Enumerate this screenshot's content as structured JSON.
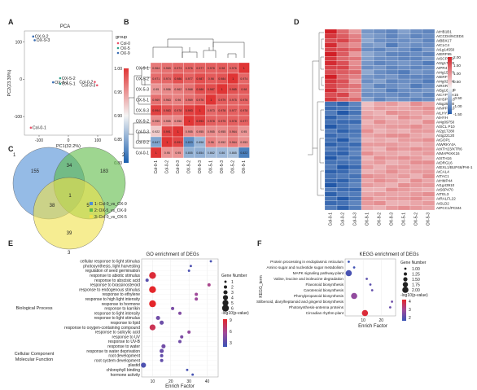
{
  "panels": {
    "A": "A",
    "B": "B",
    "C": "C",
    "D": "D",
    "E": "E",
    "F": "F"
  },
  "chart_data": [
    {
      "panel": "A",
      "type": "scatter",
      "title": "PCA",
      "xlabel": "PC1(32.2%)",
      "ylabel": "PC2(23.39%)",
      "xlim": [
        -150,
        150
      ],
      "ylim": [
        -150,
        130
      ],
      "xticks": [
        -100,
        0,
        100
      ],
      "yticks": [
        -100,
        0,
        100
      ],
      "legend_title": "group",
      "legend": [
        {
          "name": "Col-0",
          "color": "#e8546a"
        },
        {
          "name": "OX-5",
          "color": "#2fa08a"
        },
        {
          "name": "OX-9",
          "color": "#3a6db3"
        }
      ],
      "points": [
        {
          "label": "OX-9-2",
          "x": -120,
          "y": 115,
          "group": "OX-9"
        },
        {
          "label": "OX-9-3",
          "x": -115,
          "y": 105,
          "group": "OX-9"
        },
        {
          "label": "OX-5-2",
          "x": -28,
          "y": 3,
          "group": "OX-5"
        },
        {
          "label": "OX-9-1",
          "x": -52,
          "y": -8,
          "group": "OX-9"
        },
        {
          "label": "OX-5-1",
          "x": -28,
          "y": -12,
          "group": "OX-5"
        },
        {
          "label": "Col-0-2",
          "x": 90,
          "y": -7,
          "group": "Col-0"
        },
        {
          "label": "Col-0-3",
          "x": 98,
          "y": -16,
          "group": "Col-0"
        },
        {
          "label": "Col-0-1",
          "x": -128,
          "y": -130,
          "group": "Col-0"
        }
      ]
    },
    {
      "panel": "B",
      "type": "heatmap",
      "samples": [
        "OX-9-1",
        "OX-5-2",
        "OX-5-3",
        "OX-5-1",
        "OX-9-3",
        "OX-9-2",
        "Col-0-3",
        "Col-0-2",
        "Col-0-1"
      ],
      "columns": [
        "Col-0-1",
        "Col-0-2",
        "Col-0-3",
        "OX-9-2",
        "OX-9-3",
        "OX-5-1",
        "OX-5-3",
        "OX-5-2",
        "OX-9-1"
      ],
      "colorbar": {
        "ticks": [
          "1.00",
          "0.95",
          "0.90",
          "0.85",
          "0.80"
        ],
        "range": [
          0.8,
          1.0
        ]
      },
      "matrix": [
        [
          0.964,
          0.969,
          0.973,
          0.976,
          0.977,
          0.978,
          0.98,
          0.976,
          1
        ],
        [
          0.971,
          0.974,
          0.986,
          0.977,
          0.987,
          0.98,
          0.984,
          1,
          0.974
        ],
        [
          0.95,
          0.956,
          0.962,
          0.968,
          0.986,
          0.987,
          1,
          0.985,
          0.98
        ],
        [
          0.969,
          0.963,
          0.96,
          0.969,
          0.976,
          1,
          0.979,
          0.975,
          0.976
        ],
        [
          0.994,
          0.983,
          0.978,
          0.993,
          1,
          0.973,
          0.978,
          0.977,
          0.978
        ],
        [
          0.955,
          0.955,
          0.956,
          1,
          0.993,
          0.978,
          0.975,
          0.978,
          0.977
        ],
        [
          0.922,
          0.991,
          1,
          0.955,
          0.955,
          0.955,
          0.955,
          0.964,
          0.95
        ],
        [
          0.847,
          1,
          0.991,
          0.833,
          0.858,
          0.96,
          0.952,
          0.964,
          0.953
        ],
        [
          1,
          0.95,
          0.95,
          0.855,
          0.854,
          0.862,
          0.86,
          0.865,
          0.822
        ]
      ]
    },
    {
      "panel": "C",
      "type": "venn",
      "set_labels": [
        "1",
        "2",
        "3"
      ],
      "legend": [
        "1: Col-0_vs_OX-9",
        "2: OX-5_vs_OX-9",
        "3: Col-0_vs_OX-5"
      ],
      "colors": [
        "#4f8ed6",
        "#5dbb46",
        "#f0e14a"
      ],
      "regions": {
        "only1": 155,
        "only2": 183,
        "only3": 39,
        "a12": 34,
        "a13": 38,
        "a23": 5,
        "a123": 1
      }
    },
    {
      "panel": "D",
      "type": "heatmap",
      "columns": [
        "Col-0-1",
        "Col-0-2",
        "Col-0-3",
        "OX-9-1",
        "OX-9-2",
        "OX-9-3",
        "OX-5-1",
        "OX-5-2",
        "OX-5-3"
      ],
      "colorbar": {
        "ticks": [
          "2.00",
          "1.50",
          "1.00",
          "0.50",
          "0",
          "-0.50",
          "-1.00",
          "-1.50"
        ],
        "range": [
          -1.5,
          2
        ]
      },
      "genes": [
        "AtHB1B1",
        "AtCCD4/NCED4",
        "AtBBX17",
        "AtCLC4",
        "At1g14550",
        "AtERF95",
        "AtSCPL13",
        "At2g17120",
        "AtPR4",
        "At4g15770",
        "AtERF-5",
        "At4g02000",
        "AtRXR10",
        "At5g16410",
        "AtCYP71A15",
        "AtHSP17.6",
        "At5g25580",
        "AtNPF5.10",
        "AtLHY1",
        "AtHYH",
        "At4g09750",
        "AtSCL P10",
        "At2g17280",
        "At4g22120",
        "AtGOP1",
        "AtWRKY4A",
        "AtXTH23/XTR6",
        "AtMAPKKK16",
        "AtXTH16",
        "AtDRG16",
        "AtEXL1/BUP46/PHI-1",
        "AtCAL4",
        "AtTAC1",
        "AtHMP44",
        "At1g43910",
        "AtS6P470",
        "AtTEL3",
        "AtRALFL22",
        "AtSLD2",
        "AtPCC1/PCM4"
      ],
      "values": [
        [
          2.0,
          1.4,
          1.0,
          -0.8,
          -0.9,
          -1.0,
          -0.7,
          -0.9,
          -1.0
        ],
        [
          1.8,
          1.5,
          1.2,
          -0.7,
          -0.8,
          -1.0,
          -0.8,
          -1.0,
          -0.9
        ],
        [
          1.6,
          1.7,
          1.3,
          -0.6,
          -0.9,
          -0.9,
          -0.9,
          -0.8,
          -1.0
        ],
        [
          1.9,
          1.3,
          1.1,
          -0.8,
          -0.7,
          -1.1,
          -0.8,
          -0.9,
          -0.9
        ],
        [
          1.7,
          1.6,
          1.4,
          -0.9,
          -1.0,
          -0.8,
          -0.9,
          -1.1,
          -0.8
        ],
        [
          2.0,
          1.5,
          1.0,
          -0.6,
          -0.8,
          -1.0,
          -1.0,
          -0.9,
          -1.0
        ],
        [
          1.8,
          1.4,
          1.3,
          -0.7,
          -0.9,
          -0.9,
          -1.0,
          -1.0,
          -0.8
        ],
        [
          1.9,
          1.6,
          1.1,
          -0.8,
          -1.0,
          -0.9,
          -0.8,
          -0.9,
          -1.1
        ],
        [
          1.7,
          1.7,
          1.2,
          -0.9,
          -0.8,
          -1.0,
          -0.9,
          -1.0,
          -0.9
        ],
        [
          1.6,
          1.5,
          1.4,
          -0.6,
          -0.9,
          -1.0,
          -1.1,
          -0.8,
          -0.9
        ],
        [
          2.0,
          1.4,
          1.2,
          -0.8,
          -0.9,
          -0.8,
          -1.0,
          -1.0,
          -1.0
        ],
        [
          1.8,
          1.6,
          1.0,
          -0.9,
          -0.7,
          -1.0,
          -0.9,
          -0.9,
          -1.1
        ],
        [
          1.7,
          1.5,
          1.3,
          -0.7,
          -1.0,
          -0.9,
          -0.8,
          -1.1,
          -0.9
        ],
        [
          1.9,
          1.3,
          1.2,
          -0.8,
          -0.8,
          -1.1,
          -0.9,
          -0.9,
          -0.8
        ],
        [
          1.6,
          1.7,
          1.1,
          -0.9,
          -0.9,
          -0.9,
          -1.0,
          -0.8,
          -1.0
        ],
        [
          1.8,
          1.4,
          1.4,
          -0.7,
          -1.0,
          -0.8,
          -0.9,
          -1.0,
          -0.9
        ],
        [
          -1.2,
          -1.4,
          -1.0,
          0.7,
          0.9,
          1.0,
          0.8,
          1.1,
          0.9
        ],
        [
          -1.3,
          -1.2,
          -1.1,
          0.8,
          1.0,
          0.9,
          0.9,
          1.0,
          1.1
        ],
        [
          -1.1,
          -1.5,
          -1.2,
          0.9,
          0.8,
          1.1,
          1.0,
          0.9,
          1.0
        ],
        [
          -1.4,
          -1.1,
          -1.0,
          1.0,
          0.9,
          0.8,
          1.1,
          1.0,
          0.8
        ],
        [
          -1.2,
          -1.3,
          -1.3,
          0.8,
          1.1,
          0.9,
          0.9,
          0.8,
          1.1
        ],
        [
          -1.5,
          -1.2,
          -1.0,
          0.9,
          0.9,
          1.0,
          1.0,
          1.1,
          0.9
        ],
        [
          -1.1,
          -1.4,
          -1.2,
          1.1,
          0.8,
          0.9,
          0.8,
          1.0,
          1.0
        ],
        [
          -1.3,
          -1.1,
          -1.1,
          0.9,
          1.0,
          1.1,
          1.1,
          0.9,
          0.8
        ],
        [
          -1.2,
          -1.5,
          -1.0,
          0.8,
          0.9,
          0.8,
          1.0,
          1.0,
          1.1
        ],
        [
          -1.4,
          -1.2,
          -1.3,
          1.0,
          1.0,
          1.0,
          0.9,
          0.8,
          0.9
        ],
        [
          -1.1,
          -1.3,
          -1.1,
          0.9,
          0.8,
          1.1,
          1.0,
          1.1,
          1.0
        ],
        [
          -1.3,
          -1.4,
          -1.0,
          1.1,
          0.9,
          0.9,
          0.8,
          0.9,
          1.0
        ],
        [
          -1.5,
          -1.1,
          -1.2,
          0.8,
          1.1,
          1.0,
          1.1,
          1.0,
          0.8
        ],
        [
          -1.2,
          -1.2,
          -1.1,
          0.9,
          1.0,
          0.8,
          0.9,
          1.1,
          1.1
        ],
        [
          -1.1,
          -1.5,
          -1.3,
          1.0,
          0.8,
          1.0,
          1.0,
          0.9,
          0.9
        ],
        [
          -1.4,
          -1.3,
          -1.0,
          0.8,
          0.9,
          1.1,
          0.9,
          1.0,
          1.0
        ],
        [
          -1.2,
          -1.1,
          -1.2,
          1.1,
          1.0,
          0.9,
          1.0,
          0.8,
          1.1
        ],
        [
          -1.3,
          -1.4,
          -1.1,
          0.9,
          1.1,
          1.0,
          0.8,
          1.1,
          0.9
        ],
        [
          -1.5,
          -1.2,
          -1.0,
          1.0,
          0.9,
          0.8,
          1.1,
          1.0,
          1.0
        ],
        [
          -1.1,
          -1.3,
          -1.3,
          0.8,
          0.8,
          1.1,
          1.0,
          0.9,
          0.8
        ],
        [
          -1.4,
          -1.1,
          -1.1,
          0.9,
          1.0,
          0.9,
          0.9,
          1.0,
          1.1
        ],
        [
          -1.2,
          -1.5,
          -1.2,
          1.1,
          0.9,
          1.0,
          1.0,
          1.1,
          0.9
        ],
        [
          -1.3,
          -1.2,
          -1.0,
          1.0,
          1.1,
          0.8,
          0.8,
          0.9,
          1.0
        ],
        [
          -1.1,
          -1.4,
          -1.1,
          0.9,
          0.8,
          1.0,
          1.1,
          1.0,
          0.9
        ]
      ]
    },
    {
      "panel": "E",
      "type": "scatter",
      "title": "GO enrichment of DEGs",
      "xlabel": "Enrich Factor",
      "xticks": [
        10,
        20,
        30,
        40
      ],
      "xlim": [
        4,
        46
      ],
      "size_legend_title": "Gene Number",
      "size_legend": [
        1,
        2,
        3,
        4,
        5,
        6
      ],
      "color_legend_title": "-log10(p-value)",
      "color_ticks": [
        9,
        6,
        3
      ],
      "category_labels": {
        "bp": "Biological Process",
        "cc": "Cellular Component",
        "mf": "Molecular Function"
      },
      "terms": [
        {
          "term": "cellular response to light stimulus",
          "x": 42,
          "n": 1,
          "p": 2.5
        },
        {
          "term": "photosynthesis, light harvesting",
          "x": 31,
          "n": 1,
          "p": 2.8
        },
        {
          "term": "regulation of seed germination",
          "x": 30,
          "n": 1,
          "p": 2.7
        },
        {
          "term": "response to abiotic stimulus",
          "x": 10,
          "n": 6,
          "p": 9.5
        },
        {
          "term": "response to abscisic acid",
          "x": 7,
          "n": 2,
          "p": 3.2
        },
        {
          "term": "response to brassinosteroid",
          "x": 41,
          "n": 2,
          "p": 6.5
        },
        {
          "term": "response to endogenous stimulus",
          "x": 10,
          "n": 6,
          "p": 10
        },
        {
          "term": "response to ethylene",
          "x": 34,
          "n": 2,
          "p": 6.0
        },
        {
          "term": "response to high light intensity",
          "x": 34,
          "n": 2,
          "p": 5.8
        },
        {
          "term": "response to hormone",
          "x": 10,
          "n": 6,
          "p": 10
        },
        {
          "term": "response to karrikin",
          "x": 21,
          "n": 2,
          "p": 4.5
        },
        {
          "term": "response to light intensity",
          "x": 25,
          "n": 2,
          "p": 4.8
        },
        {
          "term": "response to light stimulus",
          "x": 13,
          "n": 3,
          "p": 4.2
        },
        {
          "term": "response to lipid",
          "x": 15,
          "n": 3,
          "p": 4.0
        },
        {
          "term": "response to oxygen-containing compound",
          "x": 10,
          "n": 5,
          "p": 8.5
        },
        {
          "term": "response to salicylic acid",
          "x": 30,
          "n": 2,
          "p": 5.5
        },
        {
          "term": "response to UV",
          "x": 26,
          "n": 2,
          "p": 4.6
        },
        {
          "term": "response to UV-B",
          "x": 25,
          "n": 2,
          "p": 4.2
        },
        {
          "term": "response to water",
          "x": 16,
          "n": 3,
          "p": 4.2
        },
        {
          "term": "response to water deprivation",
          "x": 15,
          "n": 3,
          "p": 3.9
        },
        {
          "term": "root development",
          "x": 15,
          "n": 2,
          "p": 3.6
        },
        {
          "term": "root system development",
          "x": 15,
          "n": 2,
          "p": 3.6
        },
        {
          "term": "plastid",
          "x": 5,
          "n": 4,
          "p": 2.8
        },
        {
          "term": "chlorophyll binding",
          "x": 29,
          "n": 1,
          "p": 2.5
        },
        {
          "term": "hormone activity",
          "x": 32,
          "n": 1,
          "p": 2.4
        }
      ]
    },
    {
      "panel": "F",
      "type": "scatter",
      "title": "KEGG enrichment of DEGs",
      "xlabel": "Enrich Factor",
      "ylabel": "KEGG_term",
      "xticks": [
        10,
        20
      ],
      "xlim": [
        0,
        28
      ],
      "size_legend_title": "Gene Number",
      "size_legend": [
        1.0,
        1.25,
        1.5,
        1.75,
        2.0
      ],
      "color_legend_title": "-log10(p-value)",
      "color_ticks": [
        4,
        3,
        2
      ],
      "terms": [
        {
          "term": "Protein processing in endoplasmic reticulum",
          "x": 2,
          "n": 1.0,
          "p": 1.5
        },
        {
          "term": "Amino sugar and nucleotide sugar metabolism",
          "x": 5,
          "n": 1.0,
          "p": 1.6
        },
        {
          "term": "MAPK signaling pathway-plant",
          "x": 2,
          "n": 2.0,
          "p": 1.7
        },
        {
          "term": "Valine, leucine and isoleucine degradation",
          "x": 12,
          "n": 1.0,
          "p": 2.0
        },
        {
          "term": "Flavonoid biosynthesis",
          "x": 14,
          "n": 1.0,
          "p": 2.0
        },
        {
          "term": "Carotenoid biosynthesis",
          "x": 15,
          "n": 1.0,
          "p": 2.1
        },
        {
          "term": "Phenylpropanoid biosynthesis",
          "x": 5,
          "n": 2.0,
          "p": 2.8
        },
        {
          "term": "Stilbenoid, diarylheptanoid and gingerol biosynthesis",
          "x": 26,
          "n": 1.0,
          "p": 2.3
        },
        {
          "term": "Photosynthesis-antenna proteins",
          "x": 25,
          "n": 1.0,
          "p": 2.2
        },
        {
          "term": "Circadian rhythm-plant",
          "x": 11,
          "n": 2.0,
          "p": 4.3
        }
      ]
    }
  ]
}
